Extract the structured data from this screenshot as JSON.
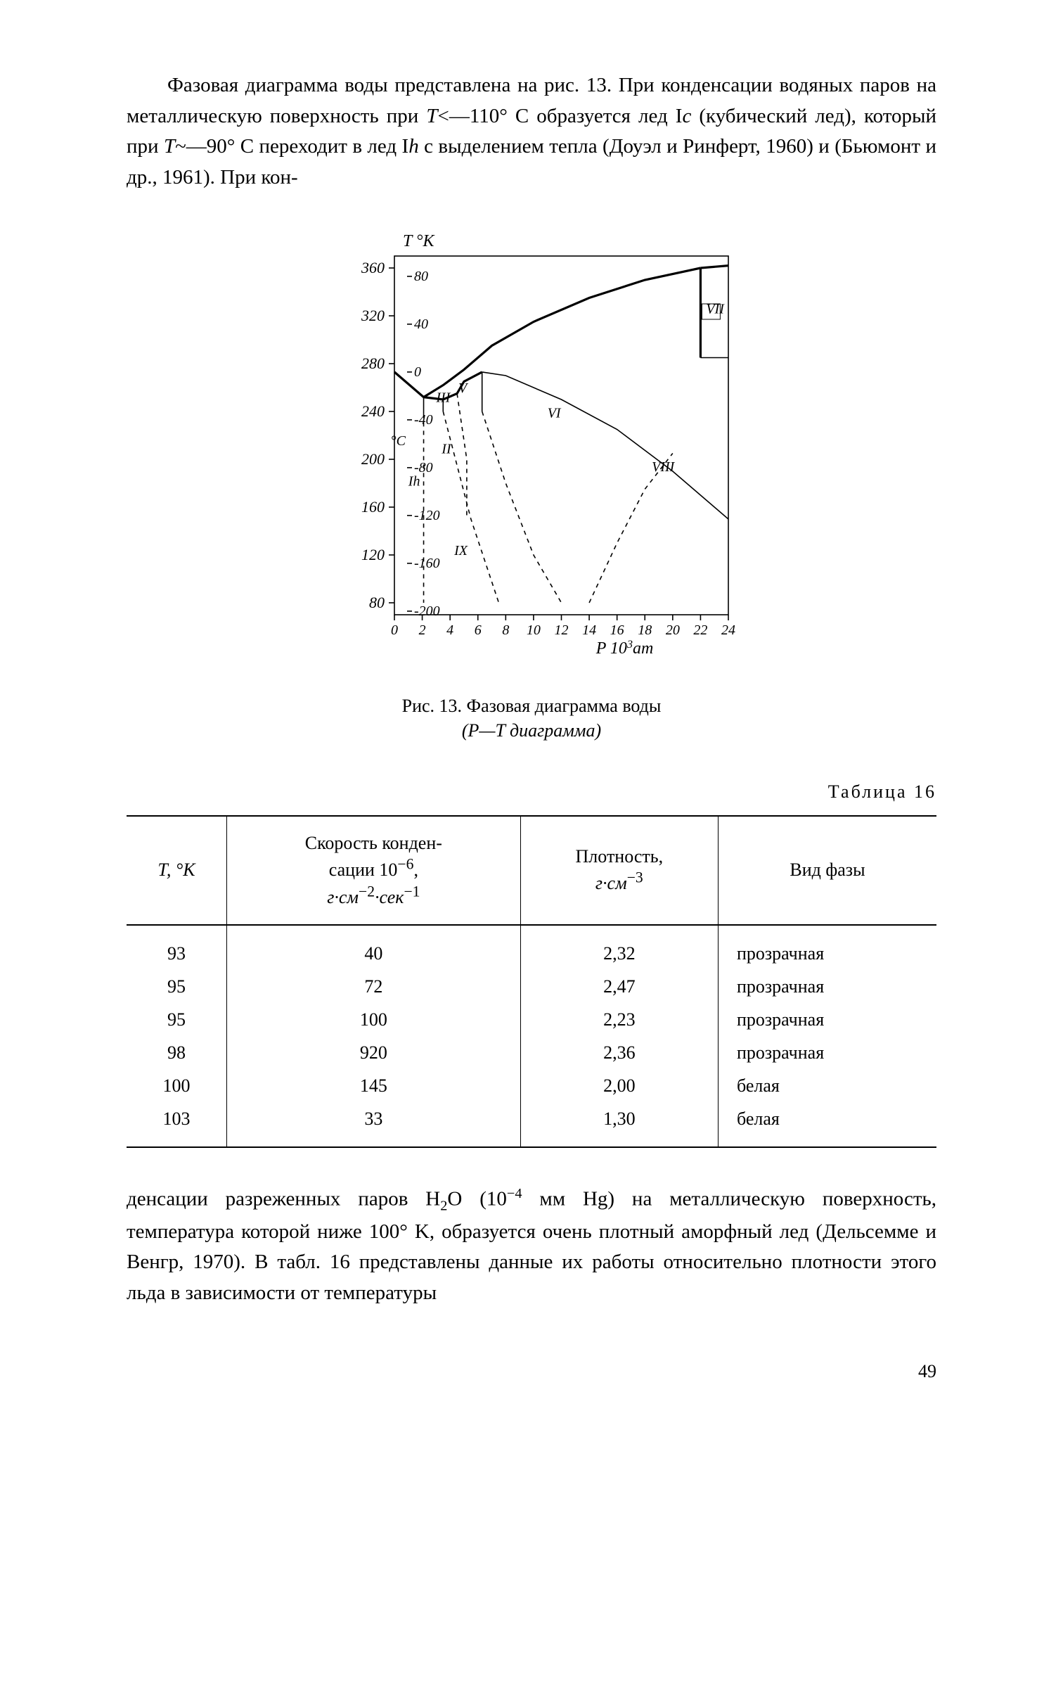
{
  "para1_parts": {
    "a": "Фазовая диаграмма воды представлена на рис. 13. При конденсации водяных паров на металлическую поверхность при ",
    "b": "T",
    "c": "<—110° С образуется лед I",
    "d": "c",
    "e": " (кубический лед), который при ",
    "f": "T",
    "g": "~—90° С переходит в лед I",
    "h": "h",
    "i": " с выделением тепла (Доуэл и Ринферт, 1960) и (Бьюмонт и др., 1961). При кон-"
  },
  "figure": {
    "caption_line1": "Рис. 13. Фазовая диаграмма воды",
    "caption_line2": "(P—T диаграмма)",
    "outer_y": {
      "title": "T °K",
      "ticks": [
        80,
        120,
        160,
        200,
        240,
        280,
        320,
        360
      ]
    },
    "inner_y": {
      "unit": "°C",
      "ticks": [
        -200,
        -160,
        -120,
        -80,
        -40,
        0,
        40,
        80
      ]
    },
    "x": {
      "title_prefix": "P 10",
      "title_exp": "3",
      "title_unit": "ат",
      "ticks": [
        0,
        2,
        4,
        6,
        8,
        10,
        12,
        14,
        16,
        18,
        20,
        22,
        24
      ]
    },
    "phase_labels": {
      "III": "III",
      "V": "V",
      "VI": "VI",
      "VII": "VII",
      "VIII": "VIII",
      "II": "II",
      "IX": "IX",
      "Ih": "Ih"
    },
    "stroke": "#000000",
    "stroke_bold": 3.2,
    "stroke_normal": 1.6,
    "stroke_dash": "6,6"
  },
  "table": {
    "label": "Таблица 16",
    "columns": [
      "T, °K",
      "Скорость конденсации 10⁻⁶, г·см⁻²·сек⁻¹",
      "Плотность, г·см⁻³",
      "Вид фазы"
    ],
    "rows": [
      [
        "93",
        "40",
        "2,32",
        "прозрачная"
      ],
      [
        "95",
        "72",
        "2,47",
        "прозрачная"
      ],
      [
        "95",
        "100",
        "2,23",
        "прозрачная"
      ],
      [
        "98",
        "920",
        "2,36",
        "прозрачная"
      ],
      [
        "100",
        "145",
        "2,00",
        "белая"
      ],
      [
        "103",
        "33",
        "1,30",
        "белая"
      ]
    ]
  },
  "para2_parts": {
    "a": "денсации разреженных паров H",
    "b": "2",
    "c": "O (10",
    "d": "−4",
    "e": " мм Hg) на металлическую поверхность, температура которой ниже 100° K, образуется очень плотный аморфный лед (Дельсемме и Венгр, 1970). В табл. 16 представлены данные их работы относительно плотности этого льда в зависимости от температуры"
  },
  "page_number": "49"
}
